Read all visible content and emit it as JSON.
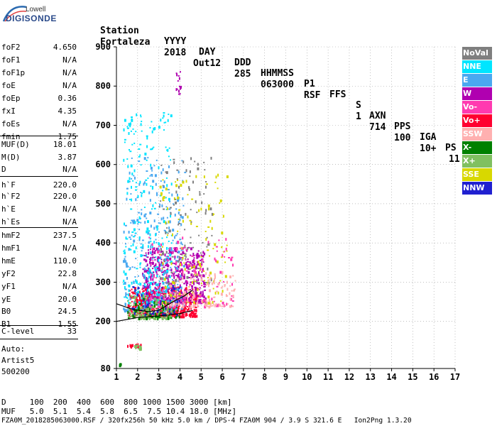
{
  "logo": {
    "brand": "Lowell",
    "name": "DIGISONDE"
  },
  "header": {
    "row1": [
      "Station",
      "YYYY",
      "DAY",
      "DDD",
      "HHMMSS",
      "P1",
      "FFS",
      "S",
      "AXN",
      "PPS",
      "IGA",
      "PS"
    ],
    "row2": [
      "Fortaleza",
      "2018",
      "Out12",
      "285",
      "063000",
      "RSF",
      "",
      "1",
      "714",
      "100",
      "10+",
      "11"
    ]
  },
  "params": [
    {
      "k": "foF2",
      "v": "4.650"
    },
    {
      "k": "foF1",
      "v": "N/A"
    },
    {
      "k": "foF1p",
      "v": "N/A"
    },
    {
      "k": "foE",
      "v": "N/A"
    },
    {
      "k": "foEp",
      "v": "0.36"
    },
    {
      "k": "fxI",
      "v": "4.35"
    },
    {
      "k": "foEs",
      "v": "N/A"
    },
    {
      "k": "fmin",
      "v": "1.75"
    },
    {
      "k": "MUF(D)",
      "v": "18.01"
    },
    {
      "k": "M(D)",
      "v": "3.87"
    },
    {
      "k": "D",
      "v": "N/A"
    },
    {
      "k": "h`F",
      "v": "220.0"
    },
    {
      "k": "h`F2",
      "v": "220.0"
    },
    {
      "k": "h`E",
      "v": "N/A"
    },
    {
      "k": "h`Es",
      "v": "N/A"
    },
    {
      "k": "hmF2",
      "v": "237.5"
    },
    {
      "k": "hmF1",
      "v": "N/A"
    },
    {
      "k": "hmE",
      "v": "110.0"
    },
    {
      "k": "yF2",
      "v": "22.8"
    },
    {
      "k": "yF1",
      "v": "N/A"
    },
    {
      "k": "yE",
      "v": "20.0"
    },
    {
      "k": "B0",
      "v": "24.5"
    },
    {
      "k": "B1",
      "v": "1.55"
    },
    {
      "k": "C-level",
      "v": "33"
    }
  ],
  "auto": {
    "l1": "Auto:",
    "l2": "Artist5",
    "l3": "500200"
  },
  "legend": [
    {
      "label": "NoVal",
      "color": "#7f7f7f"
    },
    {
      "label": "NNE",
      "color": "#00e5ff"
    },
    {
      "label": "E",
      "color": "#4aa8f0"
    },
    {
      "label": "W",
      "color": "#b000b0"
    },
    {
      "label": "Vo-",
      "color": "#ff3ab0"
    },
    {
      "label": "Vo+",
      "color": "#ff0030"
    },
    {
      "label": "SSW",
      "color": "#ffb0b0"
    },
    {
      "label": "X-",
      "color": "#008000"
    },
    {
      "label": "X+",
      "color": "#80c060"
    },
    {
      "label": "SSE",
      "color": "#d8d800"
    },
    {
      "label": "NNW",
      "color": "#2020d0"
    }
  ],
  "footer": {
    "d_line": "D     100  200  400  600  800 1000 1500 3000 [km]",
    "muf_line": "MUF   5.0  5.1  5.4  5.8  6.5  7.5 10.4 18.0 [MHz]",
    "file_line": "FZA0M_2018285063000.RSF / 320fx256h 50 kHz 5.0 km / DPS-4 FZA0M 904 / 3.9 S 321.6 E   Ion2Png 1.3.20"
  },
  "chart_data": {
    "type": "scatter",
    "title": "",
    "xlabel": "",
    "ylabel": "",
    "xlim": [
      1,
      17
    ],
    "ylim": [
      80,
      900
    ],
    "xticks": [
      1,
      2,
      3,
      4,
      5,
      6,
      7,
      8,
      9,
      10,
      11,
      12,
      13,
      14,
      15,
      16,
      17
    ],
    "yticks": [
      80,
      200,
      300,
      400,
      500,
      600,
      700,
      800,
      900
    ],
    "grid": true,
    "legend_position": "right",
    "trace_lower": [
      [
        1.0,
        200
      ],
      [
        2.0,
        210
      ],
      [
        3.0,
        214
      ],
      [
        4.0,
        220
      ],
      [
        4.6,
        228
      ]
    ],
    "trace_upper": [
      [
        1.0,
        245
      ],
      [
        1.8,
        230
      ],
      [
        2.5,
        225
      ],
      [
        3.0,
        228
      ],
      [
        3.6,
        248
      ],
      [
        4.2,
        265
      ],
      [
        4.6,
        280
      ]
    ],
    "clusters": [
      {
        "series": "Vo+",
        "xr": [
          1.5,
          4.8
        ],
        "yr": [
          215,
          290
        ],
        "n": 520
      },
      {
        "series": "W",
        "xr": [
          2.2,
          5.2
        ],
        "yr": [
          250,
          390
        ],
        "n": 520
      },
      {
        "series": "E",
        "xr": [
          1.3,
          4.2
        ],
        "yr": [
          230,
          620
        ],
        "n": 320
      },
      {
        "series": "NNE",
        "xr": [
          1.3,
          3.6
        ],
        "yr": [
          250,
          740
        ],
        "n": 260
      },
      {
        "series": "X+",
        "xr": [
          1.5,
          3.6
        ],
        "yr": [
          210,
          270
        ],
        "n": 160
      },
      {
        "series": "X-",
        "xr": [
          1.5,
          4.0
        ],
        "yr": [
          210,
          260
        ],
        "n": 70
      },
      {
        "series": "SSE",
        "xr": [
          3.0,
          6.2
        ],
        "yr": [
          250,
          580
        ],
        "n": 140
      },
      {
        "series": "NoVal",
        "xr": [
          3.0,
          5.5
        ],
        "yr": [
          300,
          620
        ],
        "n": 100
      },
      {
        "series": "Vo-",
        "xr": [
          2.5,
          6.5
        ],
        "yr": [
          240,
          420
        ],
        "n": 140
      },
      {
        "series": "SSW",
        "xr": [
          3.5,
          6.6
        ],
        "yr": [
          240,
          330
        ],
        "n": 120
      },
      {
        "series": "NNW",
        "xr": [
          1.7,
          4.0
        ],
        "yr": [
          220,
          300
        ],
        "n": 50
      },
      {
        "series": "W",
        "xr": [
          3.8,
          4.0
        ],
        "yr": [
          780,
          850
        ],
        "n": 14
      },
      {
        "series": "Vo+",
        "xr": [
          1.5,
          2.3
        ],
        "yr": [
          135,
          145
        ],
        "n": 16
      },
      {
        "series": "X+",
        "xr": [
          1.8,
          2.3
        ],
        "yr": [
          132,
          142
        ],
        "n": 14
      },
      {
        "series": "X-",
        "xr": [
          1.1,
          1.2
        ],
        "yr": [
          90,
          96
        ],
        "n": 6
      }
    ]
  }
}
